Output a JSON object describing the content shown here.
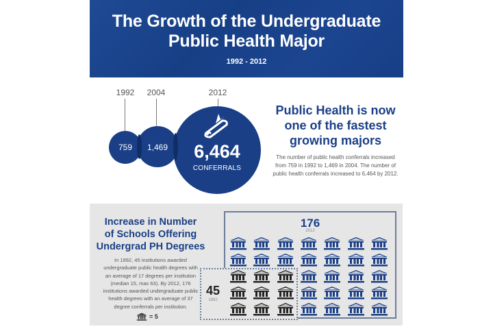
{
  "header": {
    "title_line1": "The Growth of the Undergraduate",
    "title_line2": "Public Health Major",
    "date_range": "1992 - 2012"
  },
  "conferrals": {
    "items": [
      {
        "year": "1992",
        "value": "759"
      },
      {
        "year": "2004",
        "value": "1,469"
      },
      {
        "year": "2012",
        "value": "6,464",
        "label": "CONFERRALS",
        "icon": "diploma-icon"
      }
    ],
    "headline_line1": "Public Health is now",
    "headline_line2": "one of the fastest",
    "headline_line3": "growing majors",
    "description_line1": "The number of public health conferrals increased",
    "description_line2": "from 759 in 1992 to 1,469 in 2004. The number of",
    "description_line3": "public health conferrals increased to 6,464 by 2012."
  },
  "schools": {
    "headline_line1": "Increase in Number",
    "headline_line2": "of Schools Offering",
    "headline_line3": "Undergrad PH Degrees",
    "description_lines": [
      "In 1992, 45 institutions awarded",
      "undergraduate public health degrees with",
      "an average of 17 degrees per institution",
      "(median 15, max 63). By 2012, 176",
      "institutions awarded undergraduate public",
      "health degrees with an average of 37",
      "degree conferrals per institution."
    ],
    "legend_icon": "institution-icon",
    "legend_text": "= 5",
    "count_2012": "176",
    "year_2012": "2012",
    "count_1992": "45",
    "year_1992": "1992",
    "grid_columns": 7,
    "grid_rows": 5,
    "icons_1992_block": "3 columns x 3 rows (bottom-left)",
    "colors": {
      "blue": "#1a3f86",
      "dark": "#222222"
    }
  },
  "chart_data": {
    "type": "bar",
    "title": "The Growth of the Undergraduate Public Health Major",
    "subtitle": "1992 - 2012",
    "categories": [
      "1992",
      "2004",
      "2012"
    ],
    "series": [
      {
        "name": "Public health conferrals",
        "values": [
          759,
          1469,
          6464
        ]
      }
    ],
    "schools": {
      "categories": [
        "1992",
        "2012"
      ],
      "values": [
        45,
        176
      ],
      "icon_unit": 5
    },
    "xlabel": "",
    "ylabel": "Conferrals"
  }
}
